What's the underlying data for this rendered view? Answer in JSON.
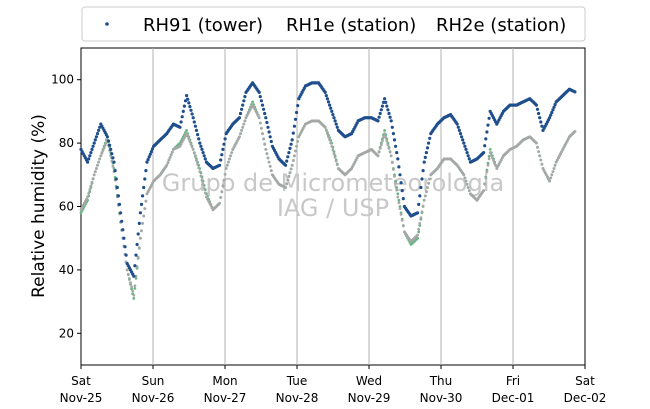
{
  "chart_data": {
    "type": "scatter",
    "title": "",
    "xlabel": "",
    "ylabel": "Relative humidity (%)",
    "ylim": [
      10,
      110
    ],
    "y_ticks": [
      20,
      40,
      60,
      80,
      100
    ],
    "x_range": [
      "2018-11-24T00:00",
      "2018-12-01T00:00"
    ],
    "x_ticks": [
      {
        "day": "Sat",
        "date": "Nov-25"
      },
      {
        "day": "Sun",
        "date": "Nov-26"
      },
      {
        "day": "Mon",
        "date": "Nov-27"
      },
      {
        "day": "Tue",
        "date": "Nov-28"
      },
      {
        "day": "Wed",
        "date": "Nov-29"
      },
      {
        "day": "Thu",
        "date": "Nov-30"
      },
      {
        "day": "Fri",
        "date": "Dec-01"
      },
      {
        "day": "Sat",
        "date": "Dec-02"
      }
    ],
    "grid": "vertical",
    "legend_position": "top",
    "watermark": [
      "Grupo de Micrometeorologia",
      "IAG / USP"
    ],
    "series": [
      {
        "name": "RH91 (tower)",
        "color": "#1f4e8c",
        "values": [
          [
            0,
            78
          ],
          [
            1,
            74
          ],
          [
            2,
            80
          ],
          [
            3,
            86
          ],
          [
            4,
            82
          ],
          [
            5,
            74
          ],
          [
            6,
            58
          ],
          [
            7,
            42
          ],
          [
            8,
            38
          ],
          [
            9,
            58
          ],
          [
            10,
            74
          ],
          [
            11,
            79
          ],
          [
            12,
            81
          ],
          [
            13,
            83
          ],
          [
            14,
            86
          ],
          [
            15,
            85
          ],
          [
            16,
            95
          ],
          [
            17,
            88
          ],
          [
            18,
            80
          ],
          [
            19,
            74
          ],
          [
            20,
            72
          ],
          [
            21,
            73
          ],
          [
            22,
            83
          ],
          [
            23,
            86
          ],
          [
            24,
            88
          ],
          [
            25,
            96
          ],
          [
            26,
            99
          ],
          [
            27,
            96
          ],
          [
            28,
            88
          ],
          [
            29,
            79
          ],
          [
            30,
            75
          ],
          [
            31,
            73
          ],
          [
            32,
            81
          ],
          [
            33,
            94
          ],
          [
            34,
            98
          ],
          [
            35,
            99
          ],
          [
            36,
            99
          ],
          [
            37,
            96
          ],
          [
            38,
            90
          ],
          [
            39,
            84
          ],
          [
            40,
            82
          ],
          [
            41,
            83
          ],
          [
            42,
            87
          ],
          [
            43,
            88
          ],
          [
            44,
            88
          ],
          [
            45,
            87
          ],
          [
            46,
            94
          ],
          [
            47,
            87
          ],
          [
            48,
            75
          ],
          [
            49,
            60
          ],
          [
            50,
            57
          ],
          [
            51,
            58
          ],
          [
            52,
            74
          ],
          [
            53,
            83
          ],
          [
            54,
            86
          ],
          [
            55,
            88
          ],
          [
            56,
            89
          ],
          [
            57,
            86
          ],
          [
            58,
            80
          ],
          [
            59,
            74
          ],
          [
            60,
            75
          ],
          [
            61,
            77
          ],
          [
            62,
            90
          ],
          [
            63,
            86
          ],
          [
            64,
            90
          ],
          [
            65,
            92
          ],
          [
            66,
            92
          ],
          [
            67,
            93
          ],
          [
            68,
            94
          ],
          [
            69,
            92
          ],
          [
            70,
            84
          ],
          [
            71,
            88
          ],
          [
            72,
            93
          ],
          [
            73,
            95
          ],
          [
            74,
            97
          ],
          [
            75,
            96
          ]
        ]
      },
      {
        "name": "RH1e (station)",
        "color": "#6ab586",
        "values": [
          [
            0,
            58
          ],
          [
            1,
            62
          ],
          [
            2,
            70
          ],
          [
            3,
            76
          ],
          [
            4,
            82
          ],
          [
            5,
            72
          ],
          [
            6,
            55
          ],
          [
            7,
            40
          ],
          [
            8,
            31
          ],
          [
            9,
            50
          ],
          [
            10,
            64
          ],
          [
            11,
            68
          ],
          [
            12,
            70
          ],
          [
            13,
            73
          ],
          [
            14,
            78
          ],
          [
            15,
            80
          ],
          [
            16,
            84
          ],
          [
            17,
            78
          ],
          [
            18,
            72
          ],
          [
            19,
            64
          ],
          [
            20,
            59
          ],
          [
            21,
            61
          ],
          [
            22,
            72
          ],
          [
            23,
            78
          ],
          [
            24,
            82
          ],
          [
            25,
            88
          ],
          [
            26,
            93
          ],
          [
            27,
            88
          ],
          [
            28,
            78
          ],
          [
            29,
            70
          ],
          [
            30,
            67
          ],
          [
            31,
            66
          ],
          [
            32,
            73
          ],
          [
            33,
            82
          ],
          [
            34,
            86
          ],
          [
            35,
            87
          ],
          [
            36,
            87
          ],
          [
            37,
            85
          ],
          [
            38,
            80
          ],
          [
            39,
            72
          ],
          [
            40,
            70
          ],
          [
            41,
            72
          ],
          [
            42,
            76
          ],
          [
            43,
            77
          ],
          [
            44,
            78
          ],
          [
            45,
            76
          ],
          [
            46,
            84
          ],
          [
            47,
            76
          ],
          [
            48,
            64
          ],
          [
            49,
            52
          ],
          [
            50,
            48
          ],
          [
            51,
            50
          ],
          [
            52,
            62
          ],
          [
            53,
            70
          ],
          [
            54,
            72
          ],
          [
            55,
            75
          ],
          [
            56,
            75
          ],
          [
            57,
            73
          ],
          [
            58,
            70
          ],
          [
            59,
            64
          ],
          [
            60,
            62
          ],
          [
            61,
            65
          ],
          [
            62,
            78
          ],
          [
            63,
            72
          ],
          [
            64,
            76
          ],
          [
            65,
            78
          ],
          [
            66,
            79
          ],
          [
            67,
            81
          ],
          [
            68,
            82
          ],
          [
            69,
            80
          ],
          [
            70,
            72
          ],
          [
            71,
            68
          ],
          [
            72,
            74
          ],
          [
            73,
            78
          ],
          [
            74,
            82
          ],
          [
            75,
            84
          ]
        ]
      },
      {
        "name": "RH2e (station)",
        "color": "#a7a7a7",
        "values": [
          [
            0,
            59
          ],
          [
            1,
            63
          ],
          [
            2,
            70
          ],
          [
            3,
            76
          ],
          [
            4,
            81
          ],
          [
            5,
            71
          ],
          [
            6,
            55
          ],
          [
            7,
            40
          ],
          [
            8,
            32
          ],
          [
            9,
            50
          ],
          [
            10,
            64
          ],
          [
            11,
            68
          ],
          [
            12,
            70
          ],
          [
            13,
            73
          ],
          [
            14,
            78
          ],
          [
            15,
            79
          ],
          [
            16,
            83
          ],
          [
            17,
            78
          ],
          [
            18,
            71
          ],
          [
            19,
            63
          ],
          [
            20,
            59
          ],
          [
            21,
            61
          ],
          [
            22,
            72
          ],
          [
            23,
            78
          ],
          [
            24,
            82
          ],
          [
            25,
            88
          ],
          [
            26,
            92
          ],
          [
            27,
            88
          ],
          [
            28,
            78
          ],
          [
            29,
            70
          ],
          [
            30,
            67
          ],
          [
            31,
            66
          ],
          [
            32,
            73
          ],
          [
            33,
            82
          ],
          [
            34,
            86
          ],
          [
            35,
            87
          ],
          [
            36,
            87
          ],
          [
            37,
            85
          ],
          [
            38,
            79
          ],
          [
            39,
            72
          ],
          [
            40,
            70
          ],
          [
            41,
            72
          ],
          [
            42,
            76
          ],
          [
            43,
            77
          ],
          [
            44,
            78
          ],
          [
            45,
            76
          ],
          [
            46,
            83
          ],
          [
            47,
            76
          ],
          [
            48,
            63
          ],
          [
            49,
            52
          ],
          [
            50,
            49
          ],
          [
            51,
            51
          ],
          [
            52,
            62
          ],
          [
            53,
            70
          ],
          [
            54,
            72
          ],
          [
            55,
            75
          ],
          [
            56,
            75
          ],
          [
            57,
            73
          ],
          [
            58,
            70
          ],
          [
            59,
            64
          ],
          [
            60,
            62
          ],
          [
            61,
            65
          ],
          [
            62,
            77
          ],
          [
            63,
            72
          ],
          [
            64,
            76
          ],
          [
            65,
            78
          ],
          [
            66,
            79
          ],
          [
            67,
            81
          ],
          [
            68,
            82
          ],
          [
            69,
            80
          ],
          [
            70,
            72
          ],
          [
            71,
            68
          ],
          [
            72,
            74
          ],
          [
            73,
            78
          ],
          [
            74,
            82
          ],
          [
            75,
            84
          ]
        ]
      }
    ],
    "x_unit_note_hours": 2.2
  }
}
